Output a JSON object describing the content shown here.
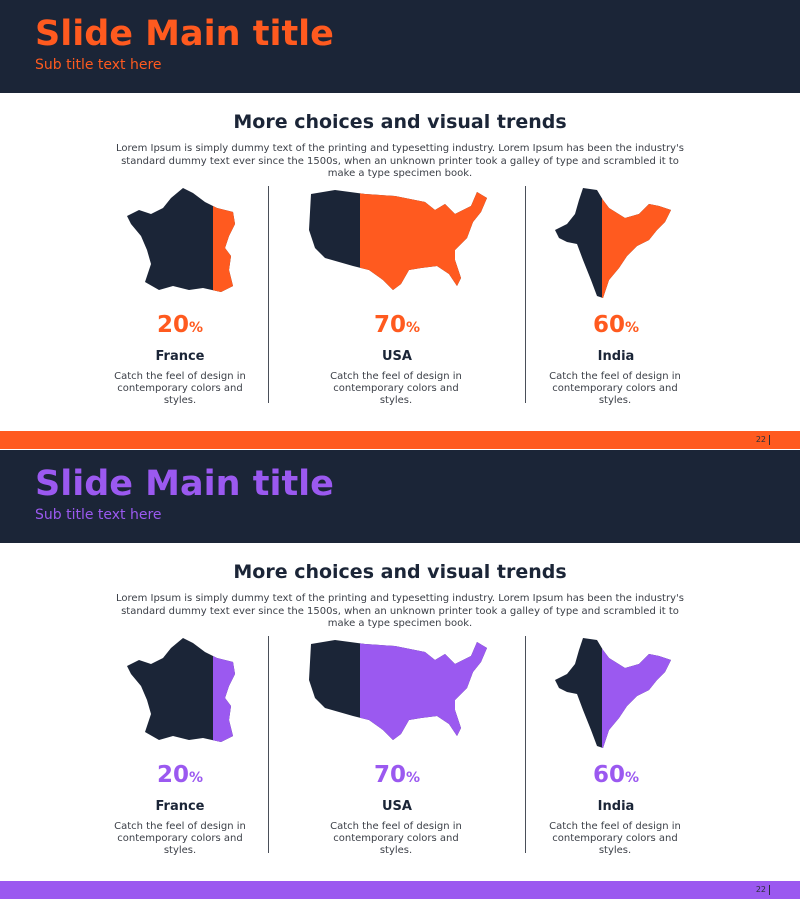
{
  "colors": {
    "dark": "#1b2537",
    "white": "#ffffff"
  },
  "slides": [
    {
      "accent": "#ff5a1f",
      "title": "Slide Main title",
      "subtitle": "Sub title text here",
      "heading": "More choices and visual trends",
      "body": "Lorem Ipsum is simply dummy text of the printing and typesetting industry. Lorem Ipsum has been the industry's standard dummy text ever since the 1500s, when an unknown printer took a galley of type and scrambled it to make a type specimen book.",
      "items": [
        {
          "percent": "20",
          "symbol": "%",
          "share": 0.2,
          "country": "France",
          "desc": "Catch the feel of design in contemporary colors and styles.",
          "icon": "france-map-icon"
        },
        {
          "percent": "70",
          "symbol": "%",
          "share": 0.7,
          "country": "USA",
          "desc": "Catch the feel of design in contemporary colors and styles.",
          "icon": "usa-map-icon"
        },
        {
          "percent": "60",
          "symbol": "%",
          "share": 0.6,
          "country": "India",
          "desc": "Catch the feel of design in contemporary colors and styles.",
          "icon": "india-map-icon"
        }
      ],
      "page": "22"
    },
    {
      "accent": "#9b59f0",
      "title": "Slide Main title",
      "subtitle": "Sub title text here",
      "heading": "More choices and visual trends",
      "body": "Lorem Ipsum is simply dummy text of the printing and typesetting industry. Lorem Ipsum has been the industry's standard dummy text ever since the 1500s, when an unknown printer took a galley of type and scrambled it to make a type specimen book.",
      "items": [
        {
          "percent": "20",
          "symbol": "%",
          "share": 0.2,
          "country": "France",
          "desc": "Catch the feel of design in contemporary colors and styles.",
          "icon": "france-map-icon"
        },
        {
          "percent": "70",
          "symbol": "%",
          "share": 0.7,
          "country": "USA",
          "desc": "Catch the feel of design in contemporary colors and styles.",
          "icon": "usa-map-icon"
        },
        {
          "percent": "60",
          "symbol": "%",
          "share": 0.6,
          "country": "India",
          "desc": "Catch the feel of design in contemporary colors and styles.",
          "icon": "india-map-icon"
        }
      ],
      "page": "22"
    }
  ]
}
